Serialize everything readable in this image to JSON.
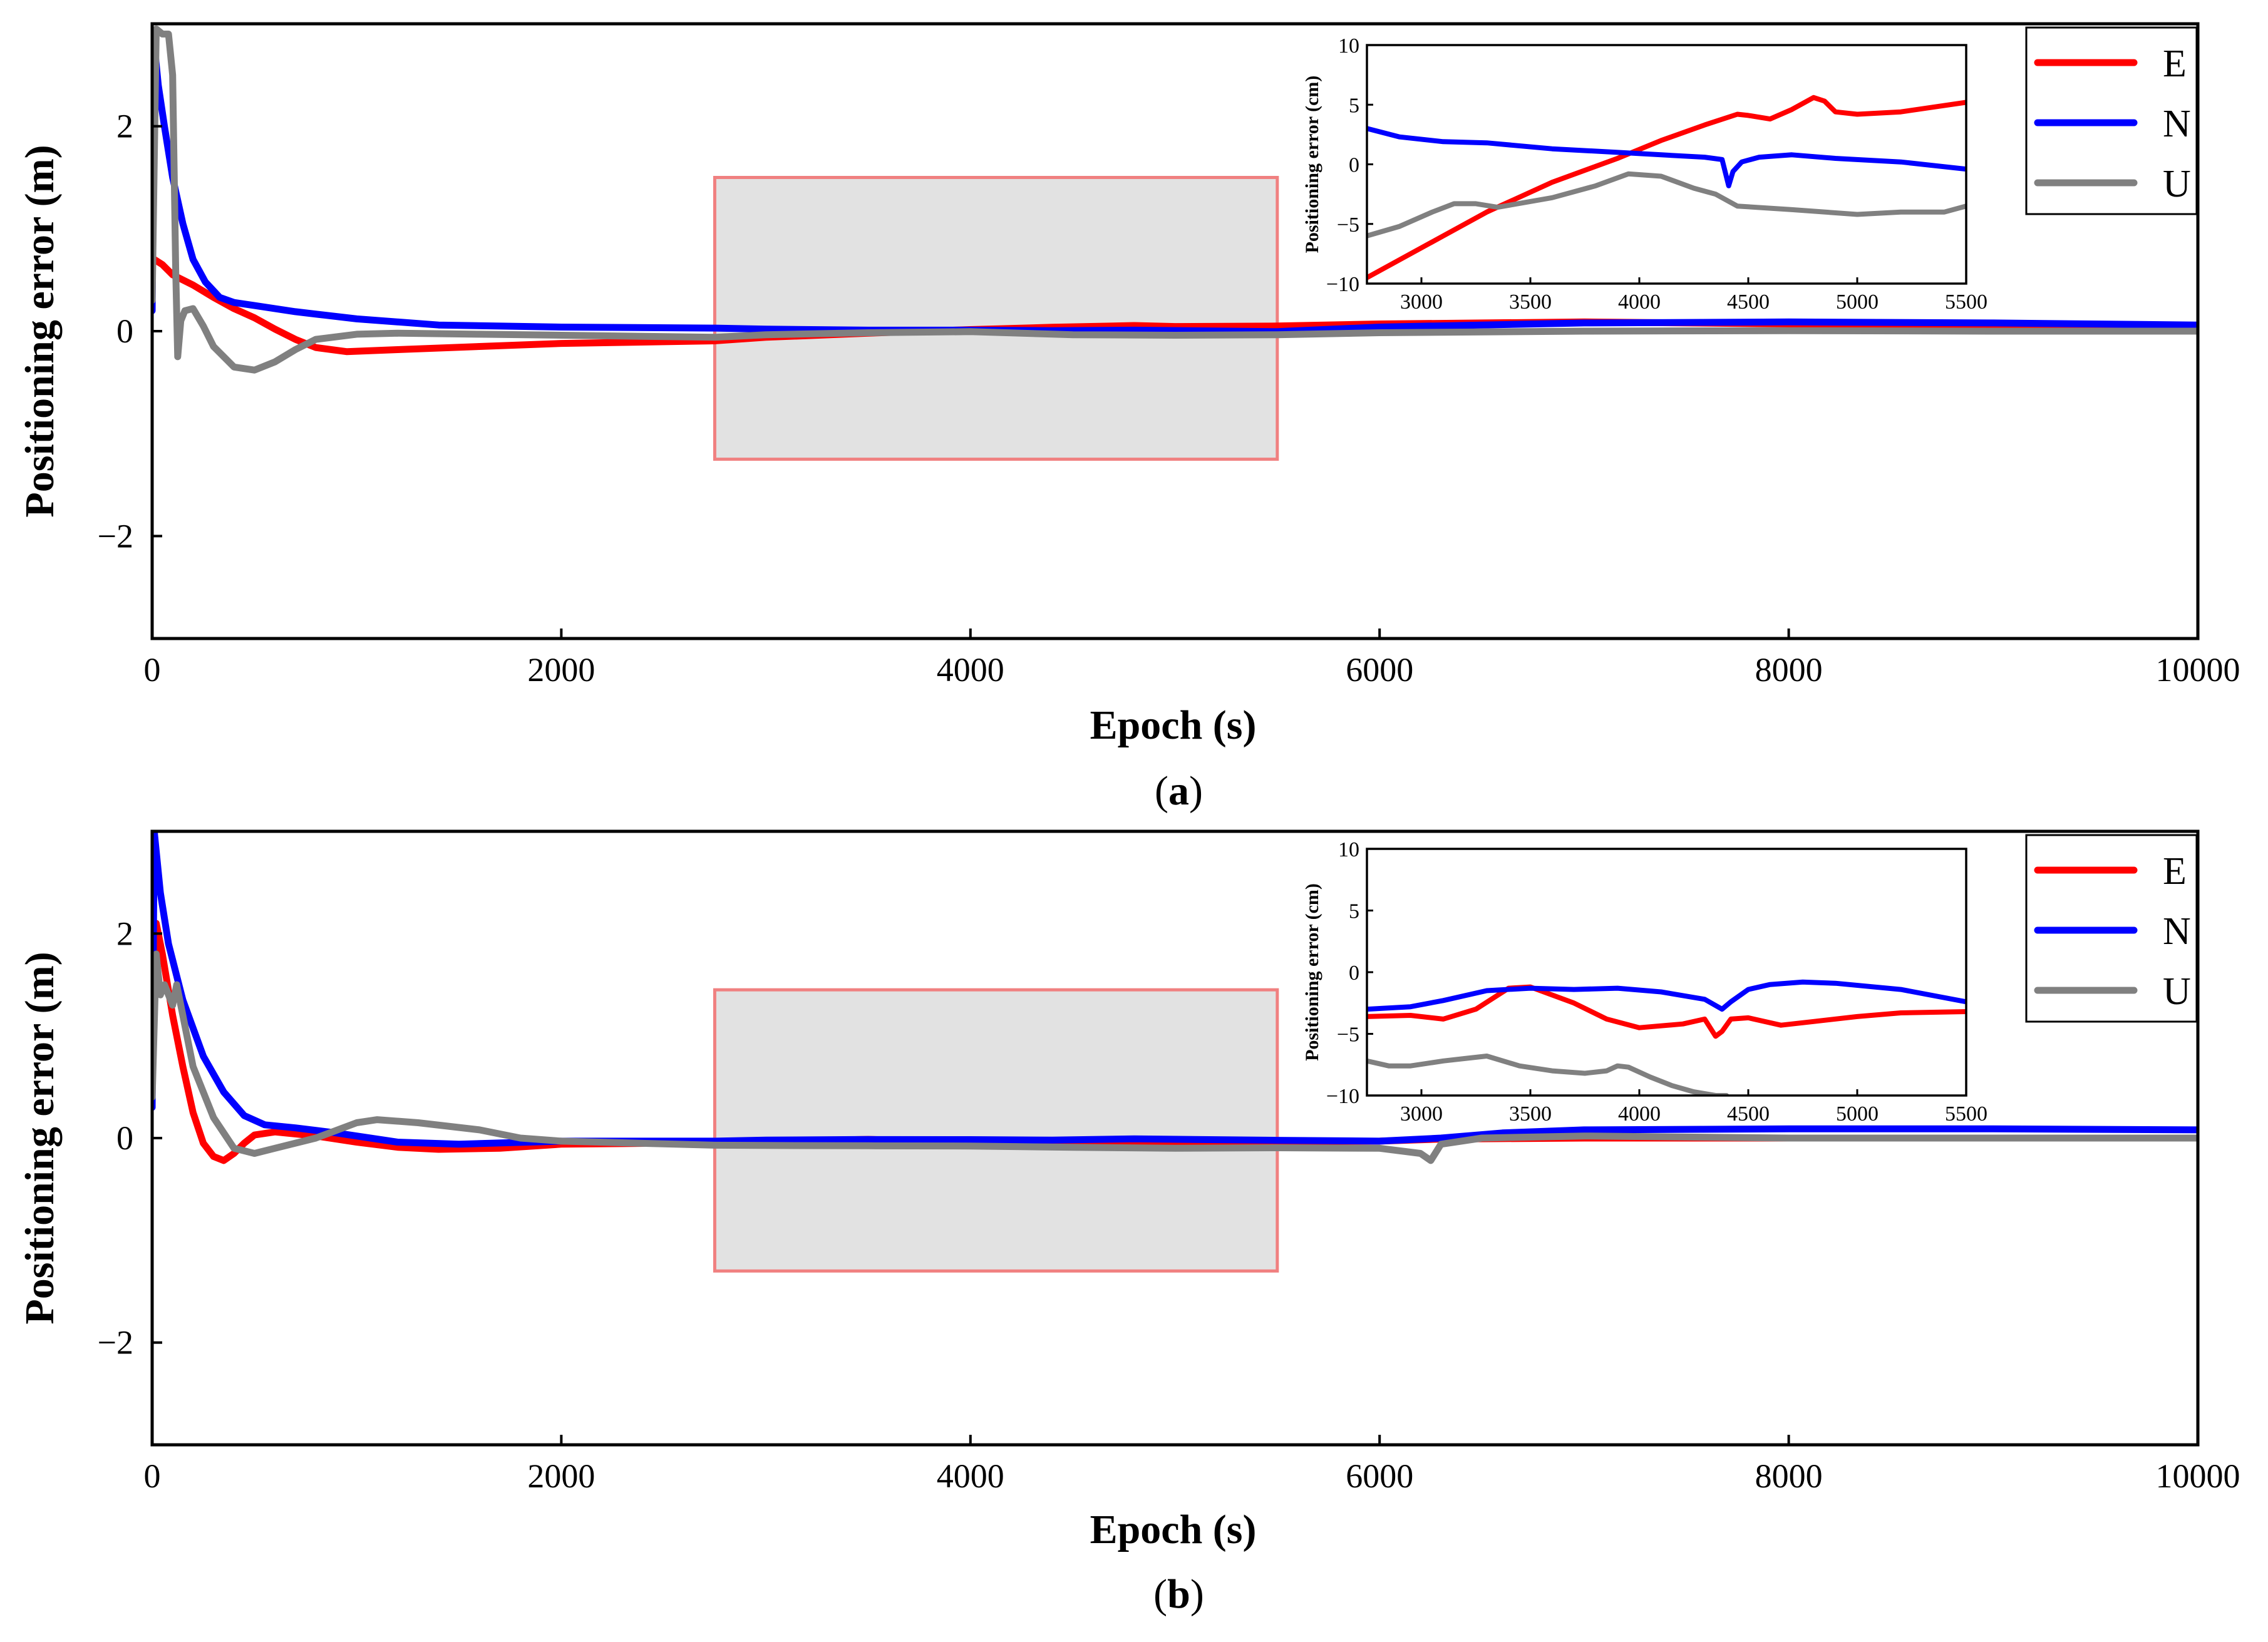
{
  "colors": {
    "E": "#ff0000",
    "N": "#0000ff",
    "U": "#808080",
    "zoom_fill": "#e2e2e2",
    "zoom_stroke": "#f08080"
  },
  "chart_data": [
    {
      "type": "line",
      "panel_label": {
        "open": "(",
        "letter": "a",
        "close": ")"
      },
      "xlabel": "Epoch (s)",
      "ylabel": "Positioning error (m)",
      "xlim": [
        0,
        10000
      ],
      "ylim": [
        -3,
        3
      ],
      "xticks": [
        "0",
        "2000",
        "4000",
        "6000",
        "8000",
        "10000"
      ],
      "yticks": [
        "2",
        "0",
        "−2"
      ],
      "legend": {
        "placement": "top-right",
        "entries": [
          "E",
          "N",
          "U"
        ]
      },
      "zoom_box": {
        "x": [
          2750,
          5500
        ],
        "y": [
          -1.25,
          1.5
        ]
      },
      "series": [
        {
          "name": "E",
          "color": "#ff0000",
          "x": [
            10,
            50,
            100,
            200,
            300,
            400,
            500,
            600,
            700,
            800,
            950,
            1200,
            1600,
            2000,
            2750,
            3000,
            3500,
            4000,
            4400,
            4800,
            5000,
            5500,
            6000,
            6500,
            7000,
            8000,
            9000,
            10000
          ],
          "y": [
            0.7,
            0.65,
            0.55,
            0.45,
            0.33,
            0.22,
            0.13,
            0.02,
            -0.08,
            -0.16,
            -0.2,
            -0.18,
            -0.15,
            -0.12,
            -0.095,
            -0.06,
            -0.02,
            0.015,
            0.038,
            0.055,
            0.045,
            0.05,
            0.07,
            0.08,
            0.09,
            0.07,
            0.06,
            0.05
          ]
        },
        {
          "name": "N",
          "color": "#0000ff",
          "x": [
            0,
            10,
            30,
            60,
            100,
            150,
            200,
            260,
            330,
            400,
            500,
            700,
            1000,
            1400,
            2000,
            2750,
            3000,
            3500,
            4000,
            4400,
            4800,
            5500,
            6000,
            7000,
            8000,
            9000,
            10000
          ],
          "y": [
            0.2,
            2.8,
            2.4,
            2.0,
            1.5,
            1.05,
            0.7,
            0.48,
            0.33,
            0.28,
            0.25,
            0.19,
            0.12,
            0.06,
            0.04,
            0.03,
            0.02,
            0.01,
            0.01,
            0.005,
            0.01,
            -0.005,
            0.04,
            0.08,
            0.09,
            0.08,
            0.06
          ]
        },
        {
          "name": "U",
          "color": "#808080",
          "x": [
            0,
            20,
            50,
            80,
            100,
            115,
            125,
            140,
            160,
            200,
            250,
            300,
            400,
            500,
            600,
            700,
            800,
            1000,
            1200,
            1600,
            2000,
            2750,
            3000,
            3500,
            4000,
            4500,
            5000,
            5500,
            6000,
            7000,
            8000,
            9000,
            10000
          ],
          "y": [
            0.3,
            2.95,
            2.9,
            2.9,
            2.5,
            0.6,
            -0.25,
            0.1,
            0.2,
            0.22,
            0.05,
            -0.15,
            -0.35,
            -0.38,
            -0.3,
            -0.18,
            -0.08,
            -0.03,
            -0.02,
            -0.03,
            -0.04,
            -0.06,
            -0.035,
            -0.015,
            -0.005,
            -0.035,
            -0.04,
            -0.035,
            -0.015,
            0.0,
            0.005,
            0.0,
            0.0
          ]
        }
      ],
      "inset": {
        "ylabel": "Positioning error (cm)",
        "xlim": [
          2750,
          5500
        ],
        "ylim": [
          -10,
          10
        ],
        "xticks": [
          "3000",
          "3500",
          "4000",
          "4500",
          "5000",
          "5500"
        ],
        "yticks": [
          "10",
          "5",
          "0",
          "−5",
          "−10"
        ],
        "series": [
          {
            "name": "E",
            "x": [
              2750,
              3000,
              3300,
              3600,
              3900,
              4100,
              4300,
              4450,
              4500,
              4600,
              4700,
              4800,
              4850,
              4900,
              5000,
              5200,
              5500
            ],
            "y": [
              -9.5,
              -7.0,
              -4.0,
              -1.5,
              0.5,
              2.0,
              3.3,
              4.2,
              4.1,
              3.8,
              4.6,
              5.6,
              5.3,
              4.4,
              4.2,
              4.4,
              5.2
            ]
          },
          {
            "name": "N",
            "x": [
              2750,
              2900,
              3100,
              3300,
              3600,
              3900,
              4100,
              4300,
              4380,
              4410,
              4430,
              4470,
              4550,
              4700,
              4900,
              5200,
              5500
            ],
            "y": [
              3.0,
              2.3,
              1.9,
              1.8,
              1.3,
              1.0,
              0.8,
              0.6,
              0.4,
              -1.8,
              -0.6,
              0.2,
              0.6,
              0.8,
              0.5,
              0.2,
              -0.4
            ]
          },
          {
            "name": "U",
            "x": [
              2750,
              2900,
              3050,
              3150,
              3250,
              3350,
              3600,
              3800,
              3950,
              4100,
              4250,
              4350,
              4450,
              4700,
              5000,
              5200,
              5400,
              5500
            ],
            "y": [
              -6.0,
              -5.2,
              -4.0,
              -3.3,
              -3.3,
              -3.6,
              -2.8,
              -1.8,
              -0.8,
              -1.0,
              -2.0,
              -2.5,
              -3.5,
              -3.8,
              -4.2,
              -4.0,
              -4.0,
              -3.5
            ]
          }
        ]
      }
    },
    {
      "type": "line",
      "panel_label": {
        "open": "(",
        "letter": "b",
        "close": ")"
      },
      "xlabel": "Epoch (s)",
      "ylabel": "Positioning error (m)",
      "xlim": [
        0,
        10000
      ],
      "ylim": [
        -3,
        3
      ],
      "xticks": [
        "0",
        "2000",
        "4000",
        "6000",
        "8000",
        "10000"
      ],
      "yticks": [
        "2",
        "0",
        "−2"
      ],
      "legend": {
        "placement": "top-right",
        "entries": [
          "E",
          "N",
          "U"
        ]
      },
      "zoom_box": {
        "x": [
          2750,
          5500
        ],
        "y": [
          -1.3,
          1.45
        ]
      },
      "series": [
        {
          "name": "E",
          "color": "#ff0000",
          "x": [
            0,
            20,
            50,
            100,
            150,
            200,
            250,
            300,
            350,
            400,
            450,
            500,
            600,
            800,
            1000,
            1200,
            1400,
            1700,
            2000,
            2500,
            2750,
            3000,
            3500,
            4000,
            4500,
            5000,
            5500,
            6000,
            6300,
            7000,
            8000,
            9000,
            10000
          ],
          "y": [
            0.5,
            2.1,
            1.8,
            1.2,
            0.7,
            0.25,
            -0.05,
            -0.18,
            -0.22,
            -0.15,
            -0.05,
            0.03,
            0.06,
            0.02,
            -0.04,
            -0.09,
            -0.11,
            -0.1,
            -0.06,
            -0.05,
            -0.036,
            -0.03,
            -0.013,
            -0.04,
            -0.035,
            -0.035,
            -0.034,
            -0.03,
            -0.01,
            0.0,
            0.0,
            0.0,
            0.0
          ]
        },
        {
          "name": "N",
          "color": "#0000ff",
          "x": [
            0,
            10,
            40,
            80,
            150,
            250,
            350,
            450,
            550,
            700,
            900,
            1200,
            1500,
            2000,
            2750,
            3000,
            3500,
            4000,
            4400,
            4800,
            5500,
            6000,
            6300,
            6600,
            7000,
            8000,
            9000,
            10000
          ],
          "y": [
            0.3,
            3.0,
            2.4,
            1.9,
            1.35,
            0.8,
            0.45,
            0.22,
            0.13,
            0.1,
            0.05,
            -0.04,
            -0.06,
            -0.03,
            -0.03,
            -0.02,
            -0.014,
            -0.015,
            -0.02,
            -0.008,
            -0.022,
            -0.03,
            0.0,
            0.05,
            0.08,
            0.09,
            0.09,
            0.08
          ]
        },
        {
          "name": "U",
          "color": "#808080",
          "x": [
            0,
            20,
            40,
            60,
            80,
            100,
            120,
            150,
            200,
            300,
            400,
            500,
            600,
            800,
            1000,
            1100,
            1300,
            1600,
            1800,
            2000,
            2750,
            3000,
            3500,
            4000,
            4500,
            5000,
            5500,
            6000,
            6200,
            6250,
            6300,
            6500,
            7000,
            8000,
            10000
          ],
          "y": [
            0.4,
            1.8,
            1.4,
            1.5,
            1.4,
            1.3,
            1.5,
            1.2,
            0.7,
            0.2,
            -0.1,
            -0.15,
            -0.1,
            0.0,
            0.15,
            0.18,
            0.15,
            0.08,
            0.0,
            -0.03,
            -0.07,
            -0.072,
            -0.075,
            -0.078,
            -0.09,
            -0.1,
            -0.095,
            -0.1,
            -0.15,
            -0.22,
            -0.06,
            0.0,
            0.02,
            0.0,
            0.0
          ]
        }
      ],
      "inset": {
        "ylabel": "Positioning error (cm)",
        "xlim": [
          2750,
          5500
        ],
        "ylim": [
          -10,
          10
        ],
        "xticks": [
          "3000",
          "3500",
          "4000",
          "4500",
          "5000",
          "5500"
        ],
        "yticks": [
          "10",
          "5",
          "0",
          "−5",
          "−10"
        ],
        "series": [
          {
            "name": "E",
            "x": [
              2750,
              2950,
              3100,
              3250,
              3400,
              3500,
              3700,
              3850,
              4000,
              4200,
              4300,
              4350,
              4380,
              4420,
              4500,
              4650,
              4800,
              5000,
              5200,
              5500
            ],
            "y": [
              -3.6,
              -3.5,
              -3.8,
              -3.0,
              -1.3,
              -1.2,
              -2.5,
              -3.8,
              -4.5,
              -4.2,
              -3.8,
              -5.2,
              -4.8,
              -3.8,
              -3.7,
              -4.3,
              -4.0,
              -3.6,
              -3.3,
              -3.2
            ]
          },
          {
            "name": "N",
            "x": [
              2750,
              2950,
              3100,
              3300,
              3500,
              3700,
              3900,
              4100,
              4300,
              4380,
              4420,
              4500,
              4600,
              4750,
              4900,
              5200,
              5500
            ],
            "y": [
              -3.0,
              -2.8,
              -2.3,
              -1.5,
              -1.3,
              -1.4,
              -1.3,
              -1.6,
              -2.2,
              -3.0,
              -2.4,
              -1.4,
              -1.0,
              -0.8,
              -0.9,
              -1.4,
              -2.4
            ]
          },
          {
            "name": "U",
            "x": [
              2750,
              2850,
              2950,
              3100,
              3200,
              3300,
              3450,
              3600,
              3750,
              3850,
              3900,
              3950,
              4050,
              4150,
              4250,
              4350,
              4400
            ],
            "y": [
              -7.2,
              -7.6,
              -7.6,
              -7.2,
              -7.0,
              -6.8,
              -7.6,
              -8.0,
              -8.2,
              -8.0,
              -7.6,
              -7.7,
              -8.5,
              -9.2,
              -9.7,
              -10.0,
              -10.0
            ]
          }
        ]
      }
    }
  ]
}
